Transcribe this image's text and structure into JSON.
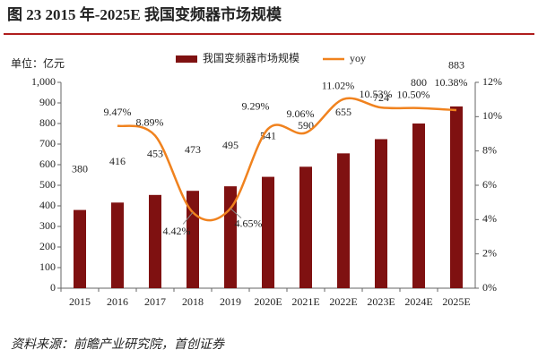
{
  "chart_data": {
    "type": "bar_line",
    "title": "图 23 2015 年-2025E 我国变频器市场规模",
    "unit_label": "单位：亿元",
    "source": "资料来源：前瞻产业研究院，首创证券",
    "categories": [
      "2015",
      "2016",
      "2017",
      "2018",
      "2019",
      "2020E",
      "2021E",
      "2022E",
      "2023E",
      "2024E",
      "2025E"
    ],
    "series": [
      {
        "name": "我国变频器市场规模",
        "type": "bar",
        "color": "#7f1111",
        "values": [
          380,
          416,
          453,
          473,
          495,
          541,
          590,
          655,
          724,
          800,
          883
        ]
      },
      {
        "name": "yoy",
        "type": "line",
        "axis": "y2",
        "color": "#f0821e",
        "values": [
          null,
          9.47,
          8.89,
          4.42,
          4.65,
          9.29,
          9.06,
          11.02,
          10.53,
          10.5,
          10.38
        ],
        "value_labels": [
          null,
          "9.47%",
          "8.89%",
          "4.42%",
          "4.65%",
          "9.29%",
          "9.06%",
          "11.02%",
          "10.53%",
          "10.50%",
          "10.38%"
        ]
      }
    ],
    "ylim": [
      0,
      1000
    ],
    "yticks": [
      0,
      100,
      200,
      300,
      400,
      500,
      600,
      700,
      800,
      900,
      {
        "value": 1000,
        "label": "1,000"
      }
    ],
    "y2lim": [
      0,
      12
    ],
    "y2ticks": [
      {
        "value": 0,
        "label": "0%"
      },
      {
        "value": 2,
        "label": "2%"
      },
      {
        "value": 4,
        "label": "4%"
      },
      {
        "value": 6,
        "label": "6%"
      },
      {
        "value": 8,
        "label": "8%"
      },
      {
        "value": 10,
        "label": "10%"
      },
      {
        "value": 12,
        "label": "12%"
      }
    ],
    "grid": false,
    "legend": "top"
  }
}
